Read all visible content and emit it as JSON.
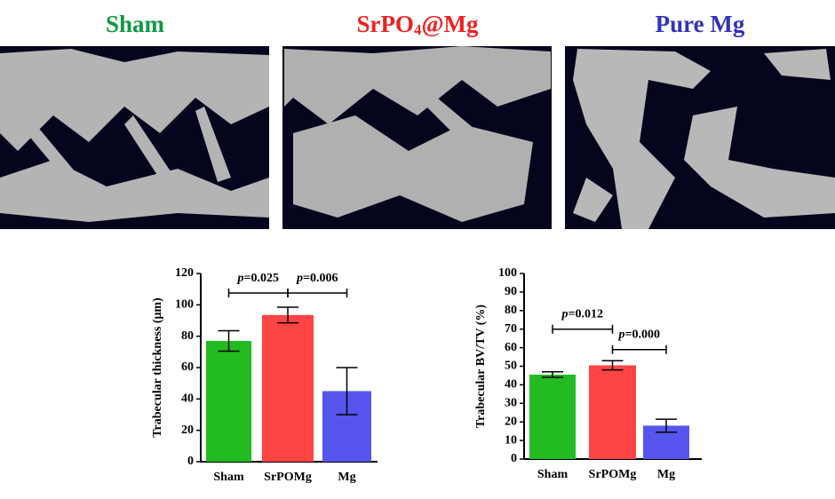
{
  "panels": [
    {
      "label_parts": [
        "Sham"
      ],
      "color": "#119944"
    },
    {
      "label_parts": [
        "SrPO",
        "4",
        "@Mg"
      ],
      "color": "#ee2222"
    },
    {
      "label_parts": [
        "Pure Mg"
      ],
      "color": "#3333bb"
    }
  ],
  "chart_data": [
    {
      "type": "bar",
      "ylabel": "Trabecular thickness (μm)",
      "categories": [
        "Sham",
        "SrPOMg",
        "Mg"
      ],
      "values": [
        77,
        93.5,
        45
      ],
      "errors": [
        6.5,
        5,
        15
      ],
      "colors": [
        "#22bb22",
        "#ff4444",
        "#5555ee"
      ],
      "ylim": [
        0,
        120
      ],
      "yticks": [
        0,
        20,
        40,
        60,
        80,
        100,
        120
      ],
      "annotations": [
        {
          "prefix": "p",
          "text": "=0.025"
        },
        {
          "prefix": "p",
          "text": "=0.006"
        }
      ]
    },
    {
      "type": "bar",
      "ylabel": "Trabecular BV/TV (%)",
      "categories": [
        "Sham",
        "SrPOMg",
        "Mg"
      ],
      "values": [
        45.5,
        50.5,
        18
      ],
      "errors": [
        1.5,
        2.5,
        3.5
      ],
      "colors": [
        "#22bb22",
        "#ff4444",
        "#5555ee"
      ],
      "ylim": [
        0,
        100
      ],
      "yticks": [
        0,
        10,
        20,
        30,
        40,
        50,
        60,
        70,
        80,
        90,
        100
      ],
      "annotations": [
        {
          "prefix": "p",
          "text": "=0.012"
        },
        {
          "prefix": "p",
          "text": "=0.000"
        }
      ]
    }
  ]
}
